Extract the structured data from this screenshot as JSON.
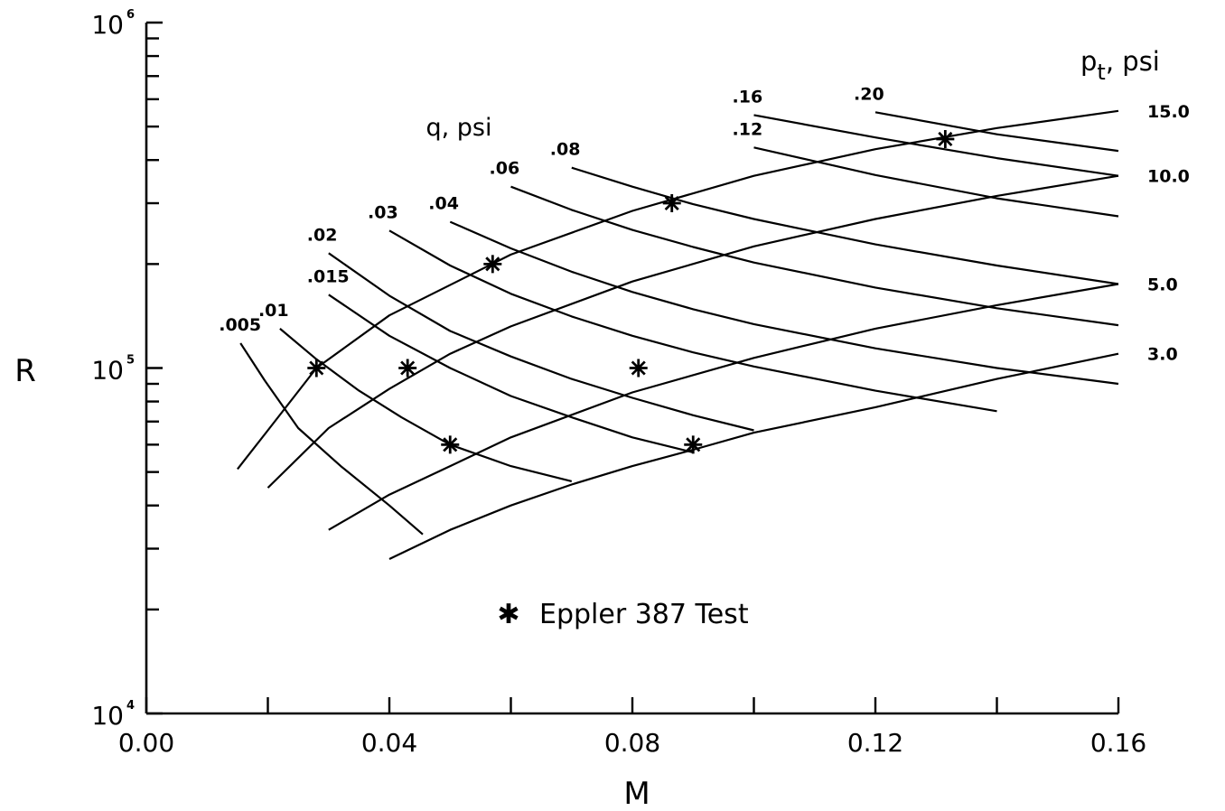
{
  "chart_data": {
    "type": "line",
    "title": "",
    "xlabel": "M",
    "ylabel": "R",
    "xlim": [
      0.0,
      0.16
    ],
    "ylim": [
      10000,
      1000000
    ],
    "y_scale": "log",
    "grid": false,
    "x_ticks": [
      {
        "value": 0.0,
        "label": "0.00"
      },
      {
        "value": 0.04,
        "label": "0.04"
      },
      {
        "value": 0.08,
        "label": "0.08"
      },
      {
        "value": 0.12,
        "label": "0.12"
      },
      {
        "value": 0.16,
        "label": "0.16"
      }
    ],
    "y_ticks": [
      {
        "value": 10000,
        "base": "10",
        "exponent": "4"
      },
      {
        "value": 100000,
        "base": "10",
        "exponent": "5"
      },
      {
        "value": 1000000,
        "base": "10",
        "exponent": "6"
      }
    ],
    "q_family": {
      "title": "q, psi",
      "series": [
        {
          "name": ".005",
          "x": [
            0.0155,
            0.0195,
            0.025,
            0.032,
            0.04,
            0.0455
          ],
          "y": [
            118000,
            92000,
            67000,
            52000,
            40000,
            33000
          ]
        },
        {
          "name": ".01",
          "x": [
            0.022,
            0.028,
            0.035,
            0.042,
            0.05,
            0.06,
            0.07
          ],
          "y": [
            130000,
            106000,
            86000,
            72000,
            60000,
            52000,
            47000
          ]
        },
        {
          "name": ".015",
          "x": [
            0.03,
            0.04,
            0.05,
            0.06,
            0.07,
            0.08,
            0.09
          ],
          "y": [
            163000,
            124000,
            100000,
            83000,
            72000,
            63000,
            57000
          ]
        },
        {
          "name": ".02",
          "x": [
            0.03,
            0.04,
            0.05,
            0.06,
            0.07,
            0.08,
            0.09,
            0.1
          ],
          "y": [
            215000,
            162000,
            128000,
            108000,
            93000,
            82000,
            73000,
            66000
          ]
        },
        {
          "name": ".03",
          "x": [
            0.04,
            0.05,
            0.06,
            0.07,
            0.08,
            0.09,
            0.1,
            0.12,
            0.14
          ],
          "y": [
            250000,
            198000,
            164000,
            141000,
            124000,
            111000,
            101000,
            86000,
            75000
          ]
        },
        {
          "name": ".04",
          "x": [
            0.05,
            0.06,
            0.07,
            0.08,
            0.09,
            0.1,
            0.12,
            0.14,
            0.16
          ],
          "y": [
            265000,
            222000,
            190000,
            166000,
            148000,
            134000,
            114000,
            100000,
            90000
          ]
        },
        {
          "name": ".06",
          "x": [
            0.06,
            0.07,
            0.08,
            0.09,
            0.1,
            0.12,
            0.14,
            0.16
          ],
          "y": [
            335000,
            287000,
            251000,
            224000,
            202000,
            171000,
            149000,
            133000
          ]
        },
        {
          "name": ".08",
          "x": [
            0.07,
            0.08,
            0.09,
            0.1,
            0.12,
            0.14,
            0.16
          ],
          "y": [
            380000,
            335000,
            298000,
            270000,
            228000,
            198000,
            175000
          ]
        },
        {
          "name": ".12",
          "x": [
            0.1,
            0.12,
            0.14,
            0.16
          ],
          "y": [
            435000,
            362000,
            310000,
            275000
          ]
        },
        {
          "name": ".16",
          "x": [
            0.1,
            0.12,
            0.14,
            0.16
          ],
          "y": [
            540000,
            465000,
            405000,
            360000
          ]
        },
        {
          "name": ".20",
          "x": [
            0.12,
            0.14,
            0.16
          ],
          "y": [
            550000,
            475000,
            425000
          ]
        }
      ]
    },
    "pt_family": {
      "title": "p",
      "title_subscript": "t",
      "title_suffix": ", psi",
      "series": [
        {
          "name": "15.0",
          "x": [
            0.015,
            0.02,
            0.028,
            0.04,
            0.06,
            0.08,
            0.1,
            0.12,
            0.14,
            0.16
          ],
          "y": [
            51000,
            66000,
            100000,
            142000,
            213000,
            285000,
            360000,
            430000,
            495000,
            555000
          ]
        },
        {
          "name": "10.0",
          "x": [
            0.02,
            0.03,
            0.04,
            0.05,
            0.06,
            0.08,
            0.1,
            0.12,
            0.14,
            0.16
          ],
          "y": [
            45000,
            67000,
            87000,
            110000,
            132000,
            178000,
            225000,
            270000,
            315000,
            360000
          ]
        },
        {
          "name": "5.0",
          "x": [
            0.03,
            0.04,
            0.05,
            0.06,
            0.08,
            0.1,
            0.12,
            0.14,
            0.16
          ],
          "y": [
            34000,
            43000,
            52000,
            63000,
            85000,
            107000,
            130000,
            152000,
            175000
          ]
        },
        {
          "name": "3.0",
          "x": [
            0.04,
            0.05,
            0.06,
            0.07,
            0.08,
            0.09,
            0.1,
            0.12,
            0.14,
            0.16
          ],
          "y": [
            28000,
            34000,
            40000,
            46000,
            52000,
            58000,
            65000,
            77000,
            93000,
            110000
          ]
        }
      ]
    },
    "test_points": {
      "name": "Eppler 387 Test",
      "marker": "asterisk",
      "x": [
        0.028,
        0.043,
        0.05,
        0.057,
        0.081,
        0.0865,
        0.09,
        0.1315
      ],
      "y": [
        100000,
        100000,
        60000,
        200000,
        100000,
        300000,
        60000,
        460000
      ]
    },
    "legend": {
      "position": "bottom-center",
      "symbol": "✱",
      "label": "Eppler 387 Test"
    }
  }
}
